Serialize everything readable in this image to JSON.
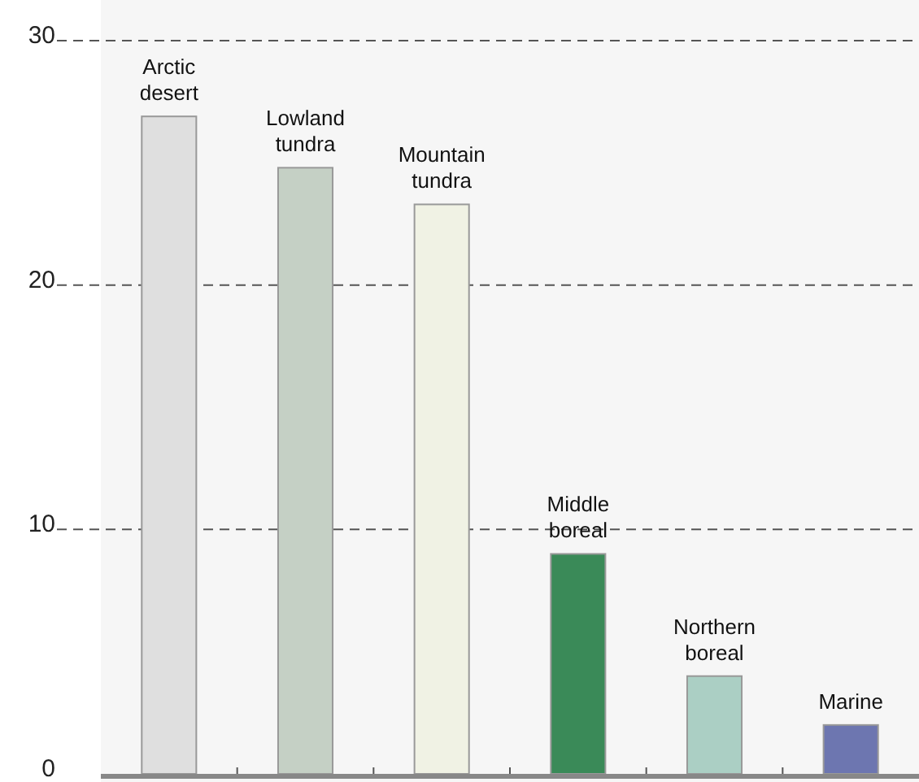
{
  "chart_data": {
    "type": "bar",
    "categories": [
      "Arctic desert",
      "Lowland tundra",
      "Mountain tundra",
      "Middle boreal",
      "Northern boreal",
      "Marine"
    ],
    "values": [
      26.9,
      24.8,
      23.3,
      9.0,
      4.0,
      2.0
    ],
    "colors": [
      "#dfdfdf",
      "#c5d0c5",
      "#f0f2e4",
      "#3a8a58",
      "#abcfc4",
      "#6d76b0"
    ],
    "ylim": [
      0,
      30
    ],
    "yticks": [
      0,
      10,
      20,
      30
    ],
    "grid": "y"
  }
}
